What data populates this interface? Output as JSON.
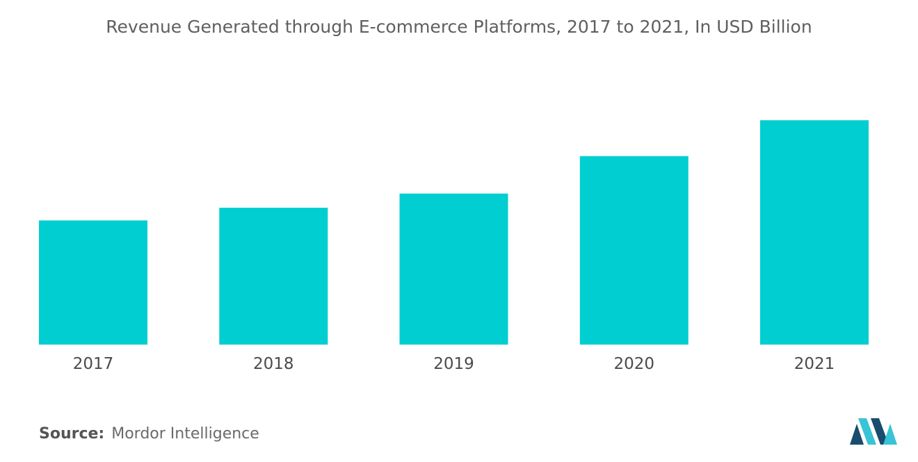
{
  "chart_data": {
    "type": "bar",
    "title": "Revenue Generated through E-commerce Platforms, 2017 to 2021, In USD Billion",
    "categories": [
      "2017",
      "2018",
      "2019",
      "2020",
      "2021"
    ],
    "values": [
      166,
      183,
      202,
      252,
      300
    ],
    "ylim": [
      0,
      340
    ],
    "xlabel": "",
    "ylabel": "",
    "grid": false,
    "legend": "none",
    "bar_color": "#00ced1"
  },
  "source": {
    "label": "Source:",
    "text": "Mordor Intelligence"
  },
  "colors": {
    "title": "#5f5f5f",
    "logo_dark": "#1a4c6e",
    "logo_light": "#39c3d6"
  }
}
